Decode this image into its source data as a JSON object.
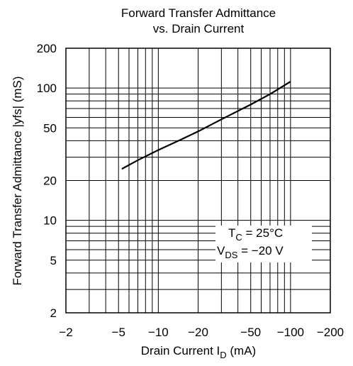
{
  "chart_data": {
    "type": "line",
    "title_line1": "Forward Transfer Admittance",
    "title_line2": "vs. Drain Current",
    "xlabel_main": "Drain Current  I",
    "xlabel_sub": "D",
    "xlabel_unit": "  (mA)",
    "ylabel": "Forward Transfer Admittance  |yfs|  (mS)",
    "x_scale": "log",
    "y_scale": "log",
    "xlim": [
      -2,
      -200
    ],
    "ylim": [
      2,
      200
    ],
    "grid": true,
    "x_ticks": [
      {
        "value": -2,
        "label": "−2"
      },
      {
        "value": -5,
        "label": "−5"
      },
      {
        "value": -10,
        "label": "−10"
      },
      {
        "value": -20,
        "label": "−20"
      },
      {
        "value": -50,
        "label": "−50"
      },
      {
        "value": -100,
        "label": "−100"
      },
      {
        "value": -200,
        "label": "−200"
      }
    ],
    "y_ticks": [
      {
        "value": 2,
        "label": "2"
      },
      {
        "value": 5,
        "label": "5"
      },
      {
        "value": 10,
        "label": "10"
      },
      {
        "value": 20,
        "label": "20"
      },
      {
        "value": 50,
        "label": "50"
      },
      {
        "value": 100,
        "label": "100"
      },
      {
        "value": 200,
        "label": "200"
      }
    ],
    "annotations": {
      "tc_main": "T",
      "tc_sub": "C",
      "tc_value": " = 25°C",
      "vds_main": "V",
      "vds_sub": "DS",
      "vds_value": " = −20 V"
    },
    "series": [
      {
        "x": [
          -5.3,
          -7,
          -10,
          -15,
          -20,
          -30,
          -50,
          -70,
          -100
        ],
        "y": [
          24.5,
          28.5,
          34,
          41,
          47,
          58,
          75,
          90,
          112
        ]
      }
    ]
  }
}
